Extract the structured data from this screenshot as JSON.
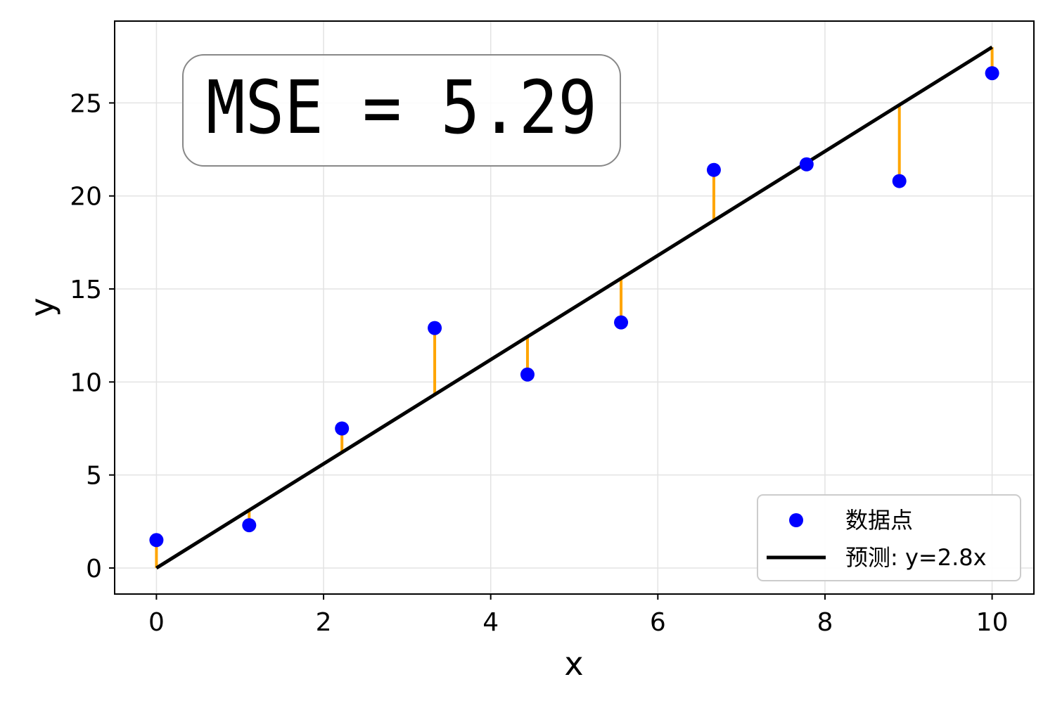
{
  "chart_data": {
    "type": "scatter",
    "xlabel": "x",
    "ylabel": "y",
    "xlim": [
      -0.5,
      10.5
    ],
    "ylim": [
      -1.4,
      29.4
    ],
    "xticks": [
      0,
      2,
      4,
      6,
      8,
      10
    ],
    "yticks": [
      0,
      5,
      10,
      15,
      20,
      25
    ],
    "grid": true,
    "legend_position": "lower-right",
    "annotation": "MSE = 5.29",
    "series": [
      {
        "name": "数据点",
        "kind": "scatter",
        "color": "#0000ff",
        "x": [
          0,
          1.11,
          2.22,
          3.33,
          4.44,
          5.56,
          6.67,
          7.78,
          8.89,
          10
        ],
        "y": [
          1.5,
          2.3,
          7.5,
          12.9,
          10.4,
          13.2,
          21.4,
          21.7,
          20.8,
          26.6
        ]
      },
      {
        "name": "预测: y=2.8x",
        "kind": "line",
        "color": "#000000",
        "slope": 2.8,
        "x": [
          0,
          10
        ],
        "y": [
          0,
          28
        ]
      }
    ],
    "residual_color": "#ffa500"
  }
}
